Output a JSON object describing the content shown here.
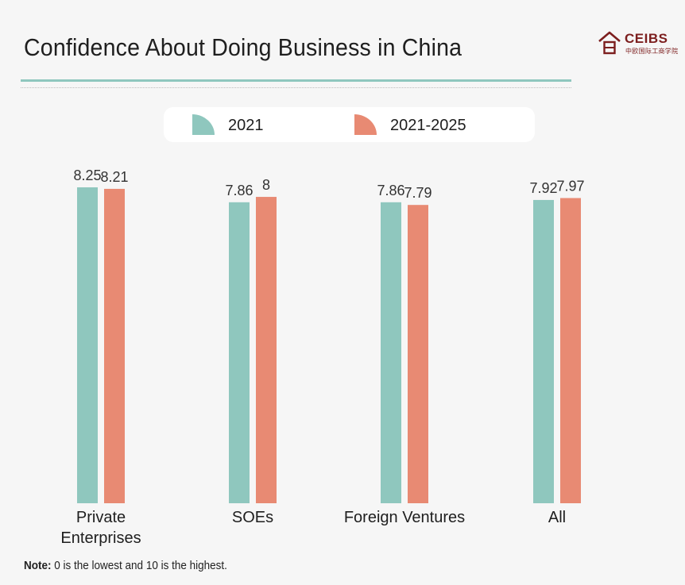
{
  "header": {
    "title": "Confidence About Doing Business in China",
    "logo_text": "CEIBS",
    "logo_subtext": "中欧国际工商学院"
  },
  "legend": {
    "items": [
      {
        "label": "2021",
        "color": "#8fc7be"
      },
      {
        "label": "2021-2025",
        "color": "#e88a73"
      }
    ]
  },
  "chart_data": {
    "type": "bar",
    "title": "Confidence About Doing Business in China",
    "categories": [
      "Private Enterprises",
      "SOEs",
      "Foreign Ventures",
      "All"
    ],
    "category_display": [
      [
        "Private",
        "Enterprises"
      ],
      [
        "SOEs"
      ],
      [
        "Foreign Ventures"
      ],
      [
        "All"
      ]
    ],
    "series": [
      {
        "name": "2021",
        "values": [
          8.25,
          7.86,
          7.86,
          7.92
        ],
        "labels": [
          "8.25",
          "7.86",
          "7.86",
          "7.92"
        ],
        "color": "#8fc7be"
      },
      {
        "name": "2021-2025",
        "values": [
          8.21,
          8,
          7.79,
          7.97
        ],
        "labels": [
          "8.21",
          "8",
          "7.79",
          "7.97"
        ],
        "color": "#e88a73"
      }
    ],
    "xlabel": "",
    "ylabel": "",
    "ylim": [
      0,
      8.25
    ],
    "grid": false,
    "legend_position": "top"
  },
  "note": {
    "label": "Note:",
    "text": "0 is the lowest and 10 is the highest."
  }
}
